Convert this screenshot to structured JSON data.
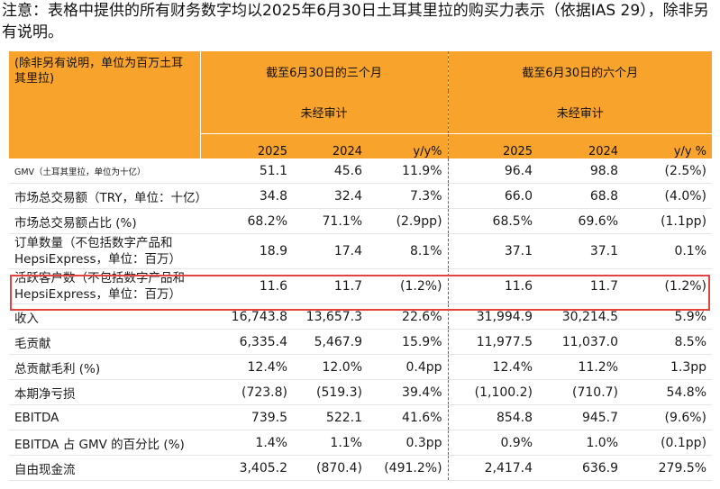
{
  "note": "注意：表格中提供的所有财务数字均以2025年6月30日土耳其里拉的购买力表示（依据IAS 29），除非另有说明。",
  "header": {
    "unit_label": "(除非另有说明，单位为百万土耳其里拉)",
    "period_3m": "截至6月30日的三个月",
    "period_6m": "截至6月30日的六个月",
    "audit_3m": "未经审计",
    "audit_6m": "未经审计",
    "columns": [
      "2025",
      "2024",
      "y/y%",
      "2025",
      "2024",
      "y/y %"
    ]
  },
  "rows": [
    {
      "label": "GMV（土耳其里拉，单位为十亿）",
      "values": [
        "51.1",
        "45.6",
        "11.9%",
        "96.4",
        "98.8",
        "(2.5%)"
      ]
    },
    {
      "label": "市场总交易额（TRY，单位：十亿）",
      "values": [
        "34.8",
        "32.4",
        "7.3%",
        "66.0",
        "68.8",
        "(4.0%)"
      ]
    },
    {
      "label": "市场总交易额占比 (%)",
      "values": [
        "68.2%",
        "71.1%",
        "(2.9pp)",
        "68.5%",
        "69.6%",
        "(1.1pp)"
      ]
    },
    {
      "label": "订单数量（不包括数字产品和HepsiExpress，单位：百万）",
      "values": [
        "18.9",
        "17.4",
        "8.1%",
        "37.1",
        "37.1",
        "0.1%"
      ]
    },
    {
      "label": "活跃客户数（不包括数字产品和HepsiExpress，单位：百万）",
      "values": [
        "11.6",
        "11.7",
        "(1.2%)",
        "11.6",
        "11.7",
        "(1.2%)"
      ]
    },
    {
      "label": "收入",
      "values": [
        "16,743.8",
        "13,657.3",
        "22.6%",
        "31,994.9",
        "30,214.5",
        "5.9%"
      ]
    },
    {
      "label": "毛贡献",
      "values": [
        "6,335.4",
        "5,467.9",
        "15.9%",
        "11,977.5",
        "11,037.0",
        "8.5%"
      ]
    },
    {
      "label": "总贡献毛利 (%)",
      "values": [
        "12.4%",
        "12.0%",
        "0.4pp",
        "12.4%",
        "11.2%",
        "1.3pp"
      ]
    },
    {
      "label": "本期净亏损",
      "values": [
        "(723.8)",
        "(519.3)",
        "39.4%",
        "(1,100.2)",
        "(710.7)",
        "54.8%"
      ]
    },
    {
      "label": "EBITDA",
      "values": [
        "739.5",
        "522.1",
        "41.6%",
        "854.8",
        "945.7",
        "(9.6%)"
      ]
    },
    {
      "label": "EBITDA 占 GMV 的百分比 (%)",
      "values": [
        "1.4%",
        "1.1%",
        "0.3pp",
        "0.9%",
        "1.0%",
        "(0.1pp)"
      ]
    },
    {
      "label": "自由现金流",
      "values": [
        "3,405.2",
        "(870.4)",
        "(491.2%)",
        "2,417.4",
        "636.9",
        "279.5%"
      ]
    }
  ],
  "colors": {
    "header_bg": "#f7a32c",
    "highlight": "#e0453f",
    "divider": "#d23a2a"
  }
}
